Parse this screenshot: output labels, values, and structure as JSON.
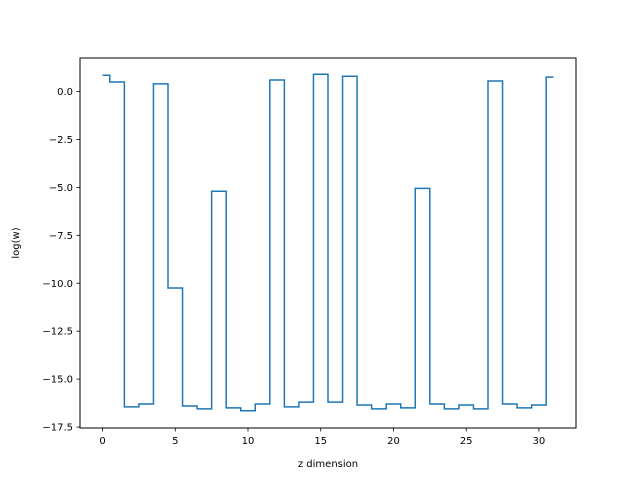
{
  "chart_data": {
    "type": "line",
    "drawstyle": "steps-mid",
    "title": "",
    "xlabel": "z dimension",
    "ylabel": "log(w)",
    "xlim": [
      -1.55,
      32.55
    ],
    "ylim": [
      -17.55,
      1.75
    ],
    "xticks": [
      0,
      5,
      10,
      15,
      20,
      25,
      30
    ],
    "xtick_labels": [
      "0",
      "5",
      "10",
      "15",
      "20",
      "25",
      "30"
    ],
    "yticks": [
      0.0,
      -2.5,
      -5.0,
      -7.5,
      -10.0,
      -12.5,
      -15.0,
      -17.5
    ],
    "ytick_labels": [
      "0.0",
      "−2.5",
      "−5.0",
      "−7.5",
      "−10.0",
      "−12.5",
      "−15.0",
      "−17.5"
    ],
    "grid": false,
    "legend": "none",
    "line_color": "#1f77b4",
    "series": [
      {
        "x": [
          0,
          1,
          2,
          3,
          4,
          5,
          6,
          7,
          8,
          9,
          10,
          11,
          12,
          13,
          14,
          15,
          16,
          17,
          18,
          19,
          20,
          21,
          22,
          23,
          24,
          25,
          26,
          27,
          28,
          29,
          30,
          31
        ],
        "values": [
          0.85,
          0.5,
          -16.45,
          -16.3,
          0.4,
          -10.25,
          -16.4,
          -16.55,
          -5.2,
          -16.5,
          -16.65,
          -16.3,
          0.6,
          -16.45,
          -16.2,
          0.9,
          -16.2,
          0.8,
          -16.35,
          -16.55,
          -16.3,
          -16.5,
          -5.05,
          -16.3,
          -16.55,
          -16.35,
          -16.55,
          0.55,
          -16.3,
          -16.5,
          -16.35,
          0.75
        ]
      }
    ]
  }
}
